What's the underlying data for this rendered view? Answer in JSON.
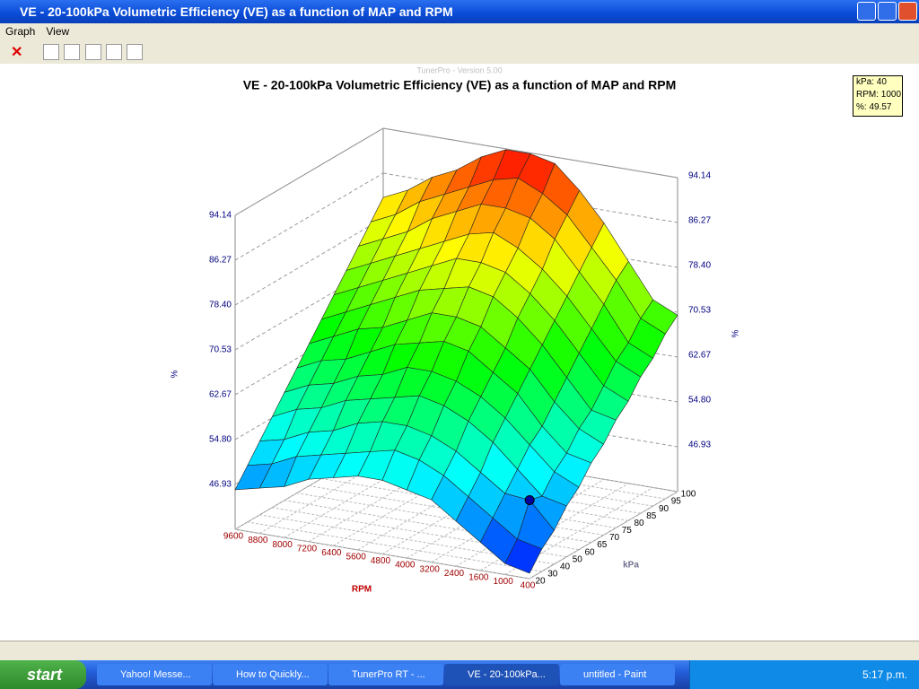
{
  "window": {
    "title": "VE - 20-100kPa Volumetric Efficiency (VE) as a function of MAP and RPM",
    "menu": [
      "Graph",
      "View"
    ]
  },
  "watermark": "TunerPro - Version 5.00",
  "tooltip": [
    "kPa: 40",
    "RPM: 1000",
    "%: 49.57"
  ],
  "chart_data": {
    "type": "surface",
    "title": "VE - 20-100kPa Volumetric Efficiency (VE) as a function of MAP and RPM",
    "x_label": "RPM",
    "y_label": "kPa",
    "z_label": "%",
    "rpm": [
      400,
      1000,
      1600,
      2400,
      3200,
      4000,
      4800,
      5600,
      6400,
      7200,
      8000,
      8800,
      9600
    ],
    "kpa": [
      20,
      30,
      40,
      50,
      60,
      65,
      70,
      75,
      80,
      85,
      90,
      95,
      100
    ],
    "values": [
      [
        40,
        41,
        44,
        47,
        50,
        51,
        52,
        52,
        51,
        50,
        48,
        47,
        46
      ],
      [
        43,
        44,
        47,
        50,
        53,
        55,
        56,
        55,
        54,
        53,
        52,
        50,
        49
      ],
      [
        45,
        49.57,
        50,
        53,
        56,
        58,
        59,
        59,
        58,
        56,
        55,
        53,
        52
      ],
      [
        48,
        49,
        53,
        57,
        60,
        62,
        63,
        62,
        61,
        60,
        58,
        57,
        55
      ],
      [
        50,
        52,
        56,
        60,
        63,
        65,
        66,
        66,
        64,
        63,
        61,
        60,
        58
      ],
      [
        53,
        54,
        58,
        63,
        66,
        69,
        70,
        69,
        68,
        66,
        64,
        63,
        61
      ],
      [
        55,
        57,
        61,
        66,
        69,
        72,
        73,
        73,
        71,
        69,
        68,
        66,
        64
      ],
      [
        58,
        59,
        64,
        69,
        73,
        76,
        77,
        76,
        75,
        73,
        71,
        69,
        67
      ],
      [
        60,
        62,
        67,
        72,
        76,
        79,
        80,
        80,
        78,
        76,
        74,
        72,
        70
      ],
      [
        63,
        65,
        70,
        75,
        79,
        82,
        84,
        83,
        81,
        79,
        77,
        75,
        73
      ],
      [
        65,
        67,
        73,
        78,
        83,
        86,
        87,
        87,
        85,
        83,
        80,
        78,
        76
      ],
      [
        68,
        70,
        76,
        81,
        86,
        89,
        91,
        90,
        88,
        86,
        84,
        81,
        79
      ],
      [
        70,
        72,
        78,
        84,
        89,
        93,
        94,
        94,
        92,
        89,
        87,
        84,
        82
      ]
    ],
    "zlim": [
      39.06,
      94.14
    ],
    "zticks": [
      46.93,
      {
        "value": 54.8,
        "label": "54.80"
      },
      62.67,
      70.53,
      {
        "value": 78.4,
        "label": "78.40"
      },
      86.27,
      94.14
    ],
    "grid": true
  },
  "taskbar": {
    "start": "start",
    "items": [
      "Yahoo! Messe...",
      "How to Quickly...",
      "TunerPro RT - ...",
      "VE - 20-100kPa...",
      "untitled - Paint"
    ],
    "clock": "5:17 p.m."
  }
}
